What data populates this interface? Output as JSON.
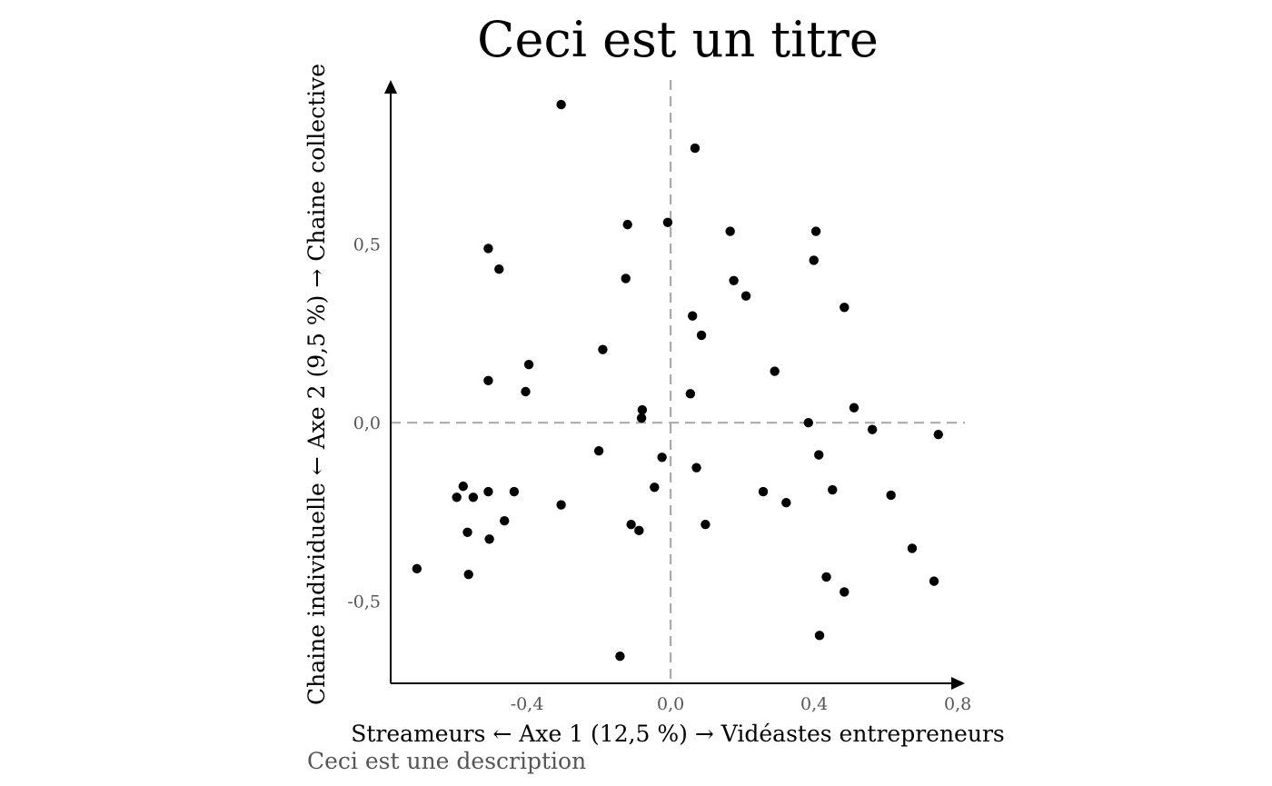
{
  "chart_data": {
    "type": "scatter",
    "title": "Ceci est un titre",
    "xlabel": "Streameurs ← Axe 1 (12,5 %) → Vidéastes entrepreneurs",
    "ylabel": "Chaine individuelle ← Axe 2 (9,5 %) → Chaine collective",
    "caption": "Ceci est une description",
    "xlim": [
      -0.78,
      0.82
    ],
    "ylim": [
      -0.73,
      0.96
    ],
    "x_ticks": [
      {
        "value": -0.4,
        "label": "-0,4"
      },
      {
        "value": 0.0,
        "label": "0,0"
      },
      {
        "value": 0.4,
        "label": "0,4"
      },
      {
        "value": 0.8,
        "label": "0,8"
      }
    ],
    "y_ticks": [
      {
        "value": -0.5,
        "label": "-0,5"
      },
      {
        "value": 0.0,
        "label": "0,0"
      },
      {
        "value": 0.5,
        "label": "0,5"
      }
    ],
    "reference_lines": {
      "x": 0,
      "y": 0,
      "style": "dashed",
      "color": "#aaaaaa"
    },
    "grid": false,
    "point_color": "#000000",
    "points": [
      {
        "x": -0.305,
        "y": 0.891
      },
      {
        "x": 0.068,
        "y": 0.769
      },
      {
        "x": -0.12,
        "y": 0.555
      },
      {
        "x": -0.008,
        "y": 0.561
      },
      {
        "x": 0.166,
        "y": 0.536
      },
      {
        "x": 0.405,
        "y": 0.536
      },
      {
        "x": -0.508,
        "y": 0.488
      },
      {
        "x": -0.478,
        "y": 0.43
      },
      {
        "x": 0.399,
        "y": 0.455
      },
      {
        "x": -0.125,
        "y": 0.404
      },
      {
        "x": 0.176,
        "y": 0.398
      },
      {
        "x": 0.21,
        "y": 0.355
      },
      {
        "x": 0.484,
        "y": 0.323
      },
      {
        "x": 0.061,
        "y": 0.299
      },
      {
        "x": 0.086,
        "y": 0.245
      },
      {
        "x": -0.189,
        "y": 0.205
      },
      {
        "x": -0.395,
        "y": 0.163
      },
      {
        "x": 0.29,
        "y": 0.144
      },
      {
        "x": -0.508,
        "y": 0.118
      },
      {
        "x": -0.404,
        "y": 0.087
      },
      {
        "x": 0.055,
        "y": 0.081
      },
      {
        "x": -0.079,
        "y": 0.036
      },
      {
        "x": -0.081,
        "y": 0.013
      },
      {
        "x": 0.511,
        "y": 0.042
      },
      {
        "x": 0.384,
        "y": 0.0
      },
      {
        "x": 0.562,
        "y": -0.019
      },
      {
        "x": 0.746,
        "y": -0.033
      },
      {
        "x": -0.2,
        "y": -0.079
      },
      {
        "x": 0.413,
        "y": -0.09
      },
      {
        "x": -0.024,
        "y": -0.097
      },
      {
        "x": 0.072,
        "y": -0.126
      },
      {
        "x": -0.045,
        "y": -0.181
      },
      {
        "x": -0.578,
        "y": -0.178
      },
      {
        "x": -0.508,
        "y": -0.193
      },
      {
        "x": -0.436,
        "y": -0.193
      },
      {
        "x": 0.258,
        "y": -0.193
      },
      {
        "x": 0.451,
        "y": -0.188
      },
      {
        "x": -0.55,
        "y": -0.209
      },
      {
        "x": -0.596,
        "y": -0.209
      },
      {
        "x": 0.614,
        "y": -0.203
      },
      {
        "x": 0.322,
        "y": -0.224
      },
      {
        "x": -0.305,
        "y": -0.23
      },
      {
        "x": -0.463,
        "y": -0.275
      },
      {
        "x": -0.11,
        "y": -0.285
      },
      {
        "x": 0.097,
        "y": -0.285
      },
      {
        "x": -0.088,
        "y": -0.302
      },
      {
        "x": -0.566,
        "y": -0.307
      },
      {
        "x": -0.505,
        "y": -0.326
      },
      {
        "x": 0.673,
        "y": -0.352
      },
      {
        "x": -0.707,
        "y": -0.409
      },
      {
        "x": -0.563,
        "y": -0.425
      },
      {
        "x": 0.434,
        "y": -0.432
      },
      {
        "x": 0.734,
        "y": -0.444
      },
      {
        "x": 0.484,
        "y": -0.474
      },
      {
        "x": 0.415,
        "y": -0.596
      },
      {
        "x": -0.141,
        "y": -0.654
      }
    ]
  }
}
